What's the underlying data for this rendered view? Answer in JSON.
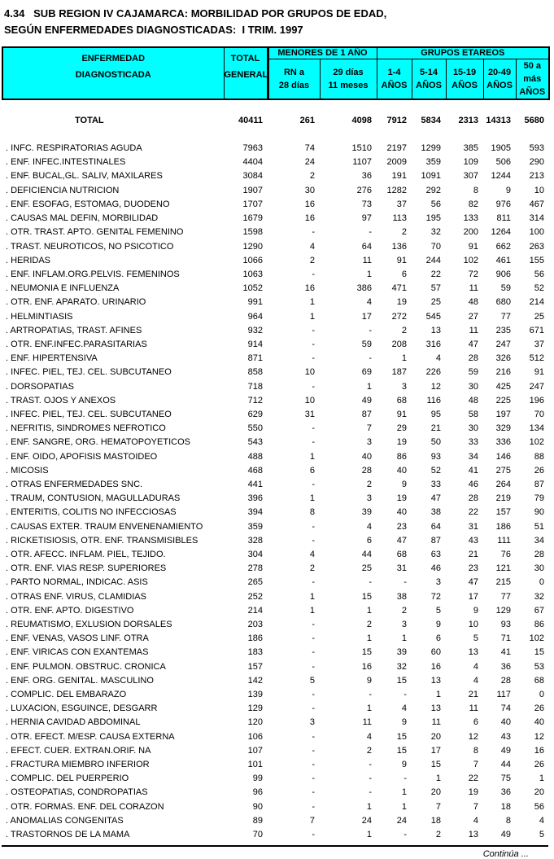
{
  "title": {
    "line1": "4.34   SUB REGION IV CAJAMARCA: MORBILIDAD POR GRUPOS DE EDAD,",
    "line2": "SEGÚN ENFERMEDADES DIAGNOSTICADAS:  I TRIM. 1997"
  },
  "colors": {
    "header_bg": "#00ffff",
    "border": "#000000",
    "text": "#000000"
  },
  "table": {
    "headers": {
      "enfermedad_line1": "ENFERMEDAD",
      "enfermedad_line2": "DIAGNOSTICADA",
      "total_line1": "TOTAL",
      "total_line2": "GENERAL",
      "menores": "MENORES DE 1 AÑO",
      "grupos": "GRUPOS ETAREOS",
      "sub": [
        {
          "line1": "RN  a",
          "line2": "28 días"
        },
        {
          "line1": "29 días",
          "line2": "11 meses"
        },
        {
          "line1": "1-4",
          "line2": "AÑOS"
        },
        {
          "line1": "5-14",
          "line2": "AÑOS"
        },
        {
          "line1": "15-19",
          "line2": "AÑOS"
        },
        {
          "line1": "20-49",
          "line2": "AÑOS"
        },
        {
          "line1": "50 a más",
          "line2": "AÑOS"
        }
      ]
    },
    "total_row": {
      "label": "TOTAL",
      "values": [
        "40411",
        "261",
        "4098",
        "7912",
        "5834",
        "2313",
        "14313",
        "5680"
      ]
    },
    "rows": [
      {
        "name": ". INFC. RESPIRATORIAS AGUDA",
        "values": [
          "7963",
          "74",
          "1510",
          "2197",
          "1299",
          "385",
          "1905",
          "593"
        ]
      },
      {
        "name": ". ENF. INFEC.INTESTINALES",
        "values": [
          "4404",
          "24",
          "1107",
          "2009",
          "359",
          "109",
          "506",
          "290"
        ]
      },
      {
        "name": ". ENF. BUCAL,GL. SALIV, MAXILARES",
        "values": [
          "3084",
          "2",
          "36",
          "191",
          "1091",
          "307",
          "1244",
          "213"
        ]
      },
      {
        "name": ". DEFICIENCIA NUTRICION",
        "values": [
          "1907",
          "30",
          "276",
          "1282",
          "292",
          "8",
          "9",
          "10"
        ]
      },
      {
        "name": ". ENF. ESOFAG, ESTOMAG, DUODENO",
        "values": [
          "1707",
          "16",
          "73",
          "37",
          "56",
          "82",
          "976",
          "467"
        ]
      },
      {
        "name": ". CAUSAS MAL DEFIN, MORBILIDAD",
        "values": [
          "1679",
          "16",
          "97",
          "113",
          "195",
          "133",
          "811",
          "314"
        ]
      },
      {
        "name": ". OTR. TRAST. APTO. GENITAL FEMENINO",
        "values": [
          "1598",
          "-",
          "-",
          "2",
          "32",
          "200",
          "1264",
          "100"
        ]
      },
      {
        "name": ". TRAST. NEUROTICOS, NO PSICOTICO",
        "values": [
          "1290",
          "4",
          "64",
          "136",
          "70",
          "91",
          "662",
          "263"
        ]
      },
      {
        "name": ". HERIDAS",
        "values": [
          "1066",
          "2",
          "11",
          "91",
          "244",
          "102",
          "461",
          "155"
        ]
      },
      {
        "name": ". ENF. INFLAM.ORG.PELVIS. FEMENINOS",
        "values": [
          "1063",
          "-",
          "1",
          "6",
          "22",
          "72",
          "906",
          "56"
        ]
      },
      {
        "name": ". NEUMONIA E INFLUENZA",
        "values": [
          "1052",
          "16",
          "386",
          "471",
          "57",
          "11",
          "59",
          "52"
        ]
      },
      {
        "name": ". OTR. ENF. APARATO. URINARIO",
        "values": [
          "991",
          "1",
          "4",
          "19",
          "25",
          "48",
          "680",
          "214"
        ]
      },
      {
        "name": ". HELMINTIASIS",
        "values": [
          "964",
          "1",
          "17",
          "272",
          "545",
          "27",
          "77",
          "25"
        ]
      },
      {
        "name": ". ARTROPATIAS, TRAST. AFINES",
        "values": [
          "932",
          "-",
          "-",
          "2",
          "13",
          "11",
          "235",
          "671"
        ]
      },
      {
        "name": ". OTR. ENF.INFEC.PARASITARIAS",
        "values": [
          "914",
          "-",
          "59",
          "208",
          "316",
          "47",
          "247",
          "37"
        ]
      },
      {
        "name": ". ENF. HIPERTENSIVA",
        "values": [
          "871",
          "-",
          "-",
          "1",
          "4",
          "28",
          "326",
          "512"
        ]
      },
      {
        "name": ". INFEC. PIEL, TEJ. CEL. SUBCUTANEO",
        "values": [
          "858",
          "10",
          "69",
          "187",
          "226",
          "59",
          "216",
          "91"
        ]
      },
      {
        "name": ". DORSOPATIAS",
        "values": [
          "718",
          "-",
          "1",
          "3",
          "12",
          "30",
          "425",
          "247"
        ]
      },
      {
        "name": ". TRAST. OJOS Y ANEXOS",
        "values": [
          "712",
          "10",
          "49",
          "68",
          "116",
          "48",
          "225",
          "196"
        ]
      },
      {
        "name": ". INFEC. PIEL, TEJ. CEL. SUBCUTANEO",
        "values": [
          "629",
          "31",
          "87",
          "91",
          "95",
          "58",
          "197",
          "70"
        ]
      },
      {
        "name": ". NEFRITIS, SINDROMES NEFROTICO",
        "values": [
          "550",
          "-",
          "7",
          "29",
          "21",
          "30",
          "329",
          "134"
        ]
      },
      {
        "name": ". ENF. SANGRE, ORG. HEMATOPOYETICOS",
        "values": [
          "543",
          "-",
          "3",
          "19",
          "50",
          "33",
          "336",
          "102"
        ]
      },
      {
        "name": ". ENF. OIDO, APOFISIS MASTOIDEO",
        "values": [
          "488",
          "1",
          "40",
          "86",
          "93",
          "34",
          "146",
          "88"
        ]
      },
      {
        "name": ". MICOSIS",
        "values": [
          "468",
          "6",
          "28",
          "40",
          "52",
          "41",
          "275",
          "26"
        ]
      },
      {
        "name": ". OTRAS ENFERMEDADES SNC.",
        "values": [
          "441",
          "-",
          "2",
          "9",
          "33",
          "46",
          "264",
          "87"
        ]
      },
      {
        "name": ". TRAUM, CONTUSION, MAGULLADURAS",
        "values": [
          "396",
          "1",
          "3",
          "19",
          "47",
          "28",
          "219",
          "79"
        ]
      },
      {
        "name": ". ENTERITIS, COLITIS NO INFECCIOSAS",
        "values": [
          "394",
          "8",
          "39",
          "40",
          "38",
          "22",
          "157",
          "90"
        ]
      },
      {
        "name": ". CAUSAS EXTER. TRAUM ENVENENAMIENTO",
        "values": [
          "359",
          "-",
          "4",
          "23",
          "64",
          "31",
          "186",
          "51"
        ]
      },
      {
        "name": ". RICKETISIOSIS, OTR. ENF. TRANSMISIBLES",
        "values": [
          "328",
          "-",
          "6",
          "47",
          "87",
          "43",
          "111",
          "34"
        ]
      },
      {
        "name": ". OTR. AFECC. INFLAM. PIEL, TEJIDO.",
        "values": [
          "304",
          "4",
          "44",
          "68",
          "63",
          "21",
          "76",
          "28"
        ]
      },
      {
        "name": ". OTR. ENF. VIAS RESP. SUPERIORES",
        "values": [
          "278",
          "2",
          "25",
          "31",
          "46",
          "23",
          "121",
          "30"
        ]
      },
      {
        "name": ". PARTO NORMAL, INDICAC. ASIS",
        "values": [
          "265",
          "-",
          "-",
          "-",
          "3",
          "47",
          "215",
          "0"
        ]
      },
      {
        "name": ". OTRAS ENF. VIRUS, CLAMIDIAS",
        "values": [
          "252",
          "1",
          "15",
          "38",
          "72",
          "17",
          "77",
          "32"
        ]
      },
      {
        "name": ". OTR. ENF. APTO. DIGESTIVO",
        "values": [
          "214",
          "1",
          "1",
          "2",
          "5",
          "9",
          "129",
          "67"
        ]
      },
      {
        "name": ". REUMATISMO, EXLUSION DORSALES",
        "values": [
          "203",
          "-",
          "2",
          "3",
          "9",
          "10",
          "93",
          "86"
        ]
      },
      {
        "name": ". ENF. VENAS, VASOS LINF. OTRA",
        "values": [
          "186",
          "-",
          "1",
          "1",
          "6",
          "5",
          "71",
          "102"
        ]
      },
      {
        "name": ". ENF. VIRICAS CON EXANTEMAS",
        "values": [
          "183",
          "-",
          "15",
          "39",
          "60",
          "13",
          "41",
          "15"
        ]
      },
      {
        "name": ". ENF. PULMON. OBSTRUC. CRONICA",
        "values": [
          "157",
          "-",
          "16",
          "32",
          "16",
          "4",
          "36",
          "53"
        ]
      },
      {
        "name": ". ENF. ORG. GENITAL. MASCULINO",
        "values": [
          "142",
          "5",
          "9",
          "15",
          "13",
          "4",
          "28",
          "68"
        ]
      },
      {
        "name": ". COMPLIC. DEL EMBARAZO",
        "values": [
          "139",
          "-",
          "-",
          "-",
          "1",
          "21",
          "117",
          "0"
        ]
      },
      {
        "name": ". LUXACION, ESGUINCE, DESGARR",
        "values": [
          "129",
          "-",
          "1",
          "4",
          "13",
          "11",
          "74",
          "26"
        ]
      },
      {
        "name": ". HERNIA CAVIDAD ABDOMINAL",
        "values": [
          "120",
          "3",
          "11",
          "9",
          "11",
          "6",
          "40",
          "40"
        ]
      },
      {
        "name": ". OTR. EFECT. M/ESP. CAUSA EXTERNA",
        "values": [
          "106",
          "-",
          "4",
          "15",
          "20",
          "12",
          "43",
          "12"
        ]
      },
      {
        "name": ". EFECT. CUER. EXTRAN.ORIF. NA",
        "values": [
          "107",
          "-",
          "2",
          "15",
          "17",
          "8",
          "49",
          "16"
        ]
      },
      {
        "name": ". FRACTURA MIEMBRO INFERIOR",
        "values": [
          "101",
          "-",
          "-",
          "9",
          "15",
          "7",
          "44",
          "26"
        ]
      },
      {
        "name": ". COMPLIC. DEL PUERPERIO",
        "values": [
          "99",
          "-",
          "-",
          "-",
          "1",
          "22",
          "75",
          "1"
        ]
      },
      {
        "name": ". OSTEOPATIAS, CONDROPATIAS",
        "values": [
          "96",
          "-",
          "-",
          "1",
          "20",
          "19",
          "36",
          "20"
        ]
      },
      {
        "name": ". OTR. FORMAS. ENF. DEL CORAZON",
        "values": [
          "90",
          "-",
          "1",
          "1",
          "7",
          "7",
          "18",
          "56"
        ]
      },
      {
        "name": ". ANOMALIAS CONGENITAS",
        "values": [
          "89",
          "7",
          "24",
          "24",
          "18",
          "4",
          "8",
          "4"
        ]
      },
      {
        "name": ". TRASTORNOS DE LA MAMA",
        "values": [
          "70",
          "-",
          "1",
          "-",
          "2",
          "13",
          "49",
          "5"
        ]
      }
    ],
    "footer": "Continúa ..."
  }
}
